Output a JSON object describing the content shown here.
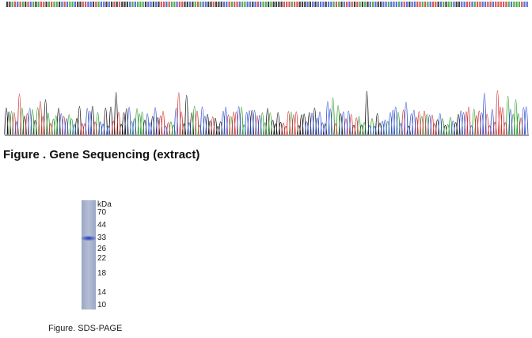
{
  "figures": [
    {
      "caption": "Figure . Gene Sequencing (extract)"
    },
    {
      "caption": "Figure. SDS-PAGE",
      "unit": "kDa",
      "markers": [
        70,
        44,
        33,
        26,
        22,
        18,
        14,
        10
      ]
    }
  ]
}
